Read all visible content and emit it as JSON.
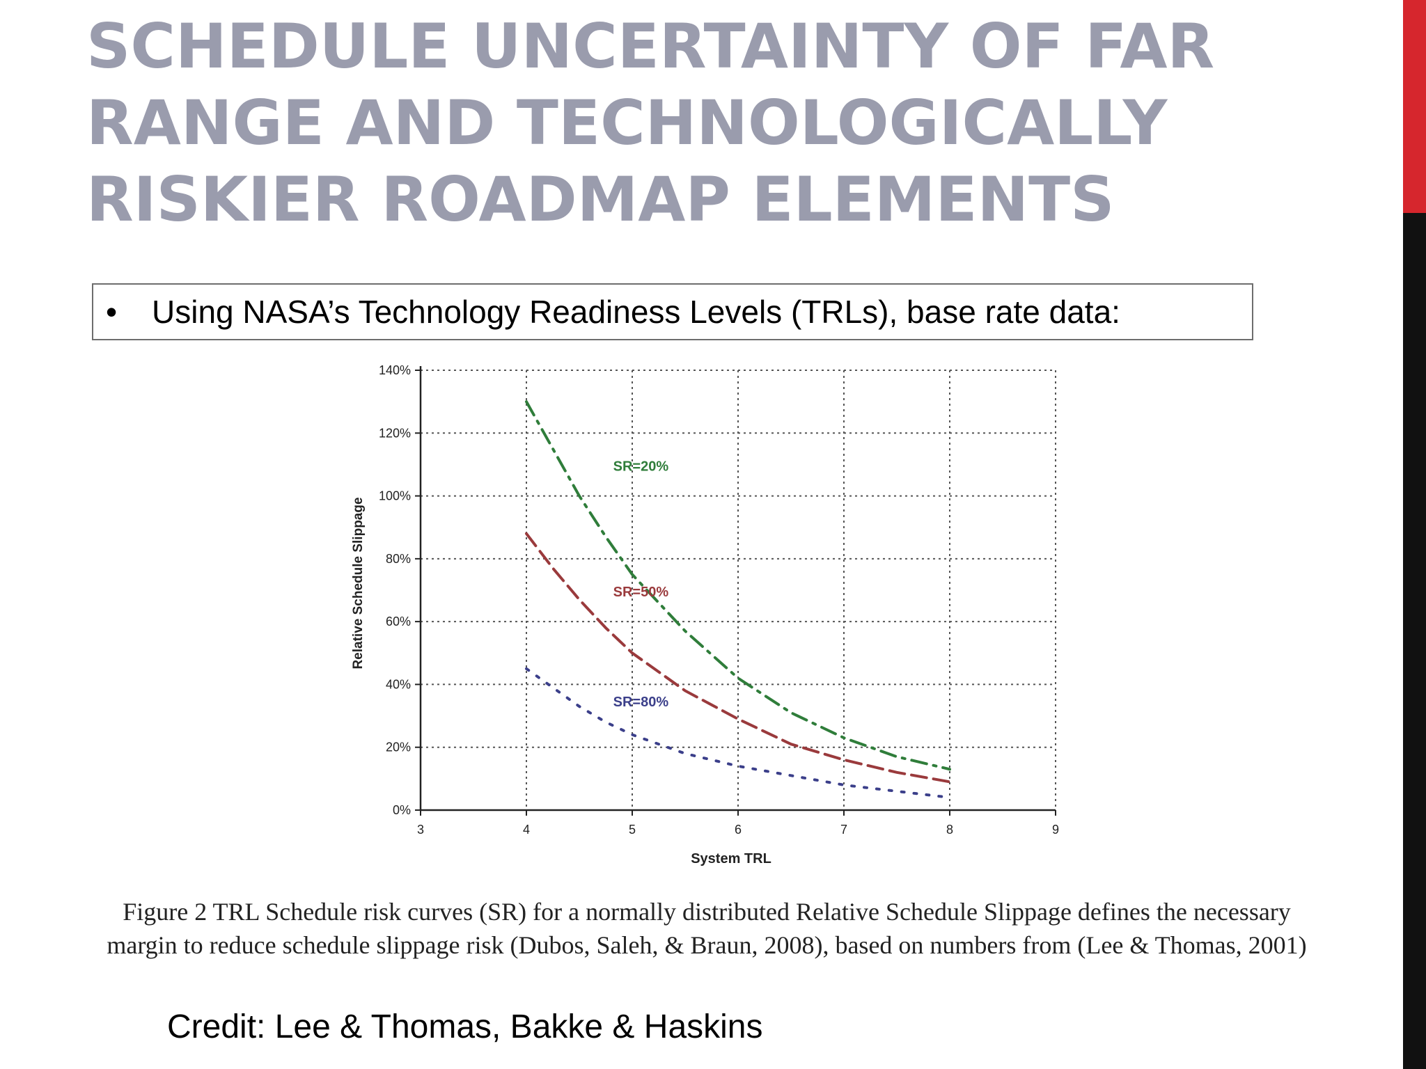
{
  "slide": {
    "title": "SCHEDULE UNCERTAINTY OF FAR RANGE AND TECHNOLOGICALLY RISKIER ROADMAP ELEMENTS",
    "bullet_marker": "•",
    "bullet_text": "Using NASA’s Technology Readiness Levels (TRLs), base rate data:",
    "caption": "Figure 2 TRL Schedule risk curves (SR) for a normally distributed Relative Schedule Slippage defines the necessary margin to reduce schedule slippage risk (Dubos, Saleh, & Braun, 2008), based on numbers from (Lee & Thomas, 2001)",
    "credit": "Credit: Lee & Thomas, Bakke & Haskins",
    "colors": {
      "title": "#9a9cad",
      "accent_red": "#d6262d",
      "accent_black": "#111111"
    }
  },
  "chart_data": {
    "type": "line",
    "xlabel": "System TRL",
    "ylabel": "Relative Schedule Slippage",
    "xlim": [
      3,
      9
    ],
    "ylim": [
      0,
      140
    ],
    "x_ticks": [
      "3",
      "4",
      "5",
      "6",
      "7",
      "8",
      "9"
    ],
    "y_ticks": [
      "0%",
      "20%",
      "40%",
      "60%",
      "80%",
      "100%",
      "120%",
      "140%"
    ],
    "grid": true,
    "series": [
      {
        "name": "SR=20%",
        "color": "#2f7d3a",
        "dash": "dash-dot",
        "x": [
          4,
          4.25,
          4.5,
          4.75,
          5,
          5.5,
          6,
          6.5,
          7,
          7.5,
          8
        ],
        "y": [
          130,
          115,
          100,
          87,
          75,
          57,
          42,
          31,
          23,
          17,
          13
        ]
      },
      {
        "name": "SR=50%",
        "color": "#9a3a3c",
        "dash": "dash",
        "x": [
          4,
          4.25,
          4.5,
          4.75,
          5,
          5.5,
          6,
          6.5,
          7,
          7.5,
          8
        ],
        "y": [
          88,
          77,
          67,
          58,
          50,
          38,
          29,
          21,
          16,
          12,
          9
        ]
      },
      {
        "name": "SR=80%",
        "color": "#3b3f8a",
        "dash": "dot",
        "x": [
          4,
          4.25,
          4.5,
          4.75,
          5,
          5.5,
          6,
          6.5,
          7,
          7.5,
          8
        ],
        "y": [
          45,
          39,
          33,
          28,
          24,
          18,
          14,
          11,
          8,
          6,
          4
        ]
      }
    ],
    "annotations": [
      {
        "text": "SR=20%",
        "x": 4.82,
        "y": 108,
        "color": "#2f7d3a"
      },
      {
        "text": "SR=50%",
        "x": 4.82,
        "y": 68,
        "color": "#9a3a3c"
      },
      {
        "text": "SR=80%",
        "x": 4.82,
        "y": 33,
        "color": "#3b3f8a"
      }
    ]
  }
}
